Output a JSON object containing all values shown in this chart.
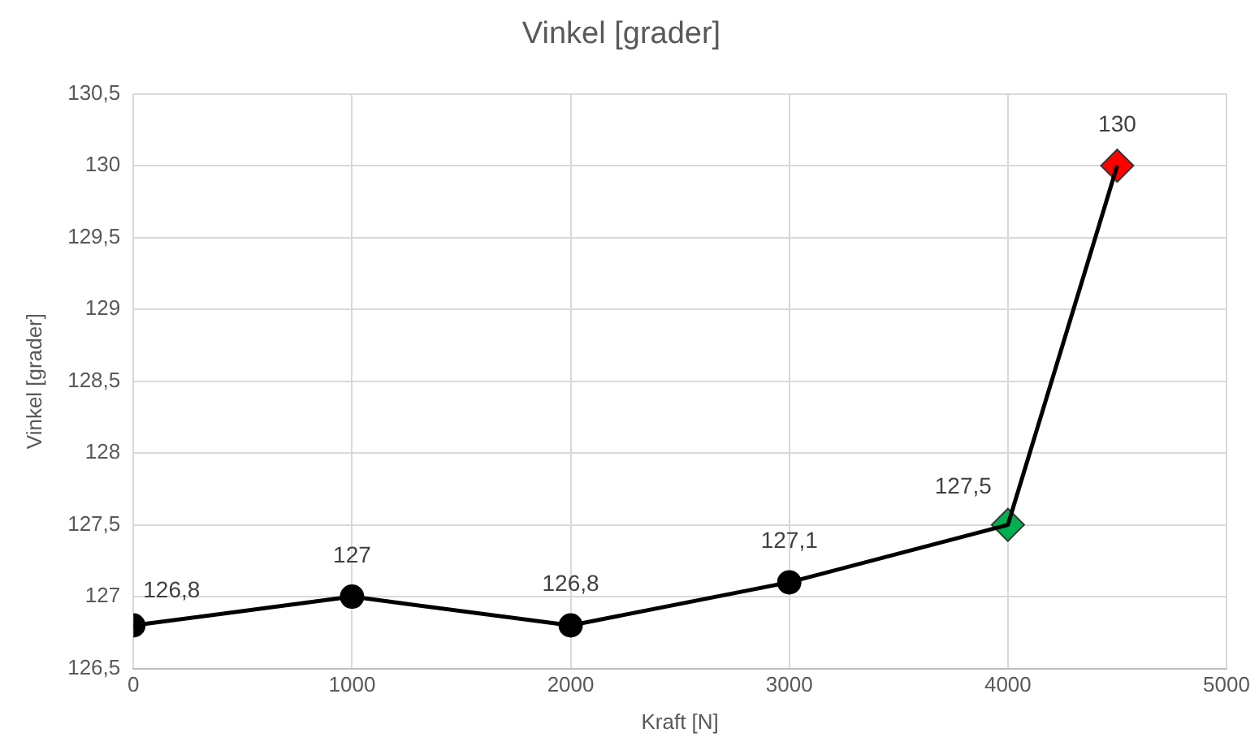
{
  "chart_data": {
    "type": "line",
    "title": "Vinkel [grader]",
    "xlabel": "Kraft [N]",
    "ylabel": "Vinkel [grader]",
    "x": [
      0,
      1000,
      2000,
      3000,
      4000,
      4500
    ],
    "series": [
      {
        "type": "line",
        "color": "#000000",
        "marker": "none",
        "values": [
          126.8,
          127,
          126.8,
          127.1,
          127.5,
          130
        ],
        "value_labels": [
          "126,8",
          "127",
          "126,8",
          "127,1",
          "127,5",
          "130"
        ]
      },
      {
        "type": "scatter",
        "marker": "circle",
        "color": "#000000",
        "x": [
          0,
          1000,
          2000,
          3000
        ],
        "values": [
          126.8,
          127,
          126.8,
          127.1
        ]
      },
      {
        "type": "scatter",
        "marker": "diamond",
        "x": [
          4000,
          4500
        ],
        "colors": [
          "#00b050",
          "#ff0000"
        ],
        "values": [
          127.5,
          130
        ]
      }
    ],
    "xlim": [
      0,
      5000
    ],
    "xticks": [
      0,
      1000,
      2000,
      3000,
      4000,
      5000
    ],
    "ylim": [
      126.5,
      130.5
    ],
    "yticks": [
      {
        "value": 126.5,
        "label": "126,5"
      },
      127,
      {
        "value": 127.5,
        "label": "127,5"
      },
      128,
      {
        "value": 128.5,
        "label": "128,5"
      },
      129,
      {
        "value": 129.5,
        "label": "129,5"
      },
      130,
      {
        "value": 130.5,
        "label": "130,5"
      }
    ],
    "grid": true,
    "legend": false
  }
}
